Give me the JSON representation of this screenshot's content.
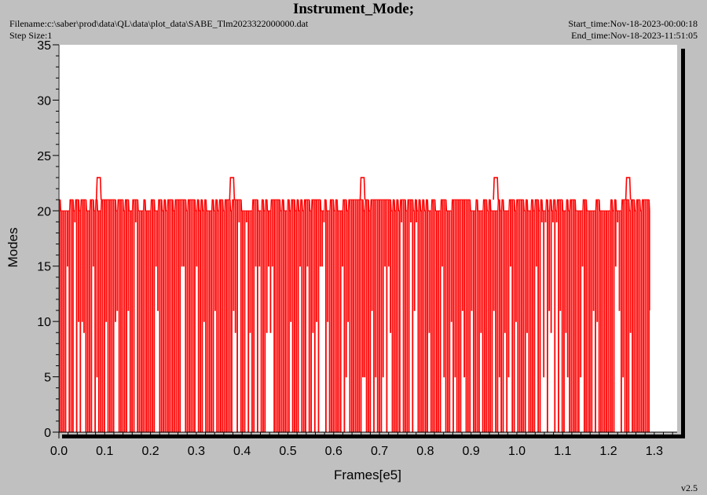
{
  "header": {
    "title": "Instrument_Mode;",
    "filename": "Filename:c:\\saber\\prod\\data\\QL\\data\\plot_data\\SABE_Tlm2023322000000.dat",
    "step_size": "Step Size:1",
    "start_time": "Start_time:Nov-18-2023-00:00:18",
    "end_time": "End_time:Nov-18-2023-11:51:05"
  },
  "version": "v2.5",
  "chart_data": {
    "type": "line",
    "xlabel": "Frames[e5]",
    "ylabel": "Modes",
    "xlim": [
      0.0,
      1.35
    ],
    "ylim": [
      0,
      35
    ],
    "xticks": [
      "0.0",
      "0.1",
      "0.2",
      "0.3",
      "0.4",
      "0.5",
      "0.6",
      "0.7",
      "0.8",
      "0.9",
      "1.0",
      "1.1",
      "1.2",
      "1.3"
    ],
    "yticks": [
      "0",
      "5",
      "10",
      "15",
      "20",
      "25",
      "30",
      "35"
    ],
    "grid": false,
    "color": "#ff0000",
    "series": [
      {
        "x_range": [
          0.0,
          1.29
        ],
        "baseline_level": 0,
        "upper_levels": [
          20,
          21
        ],
        "intermediate_levels": [
          5,
          9,
          10,
          11,
          15,
          19
        ],
        "spikes": [
          {
            "x": 0.087,
            "y": 23
          },
          {
            "x": 0.378,
            "y": 23
          },
          {
            "x": 0.663,
            "y": 23
          },
          {
            "x": 0.954,
            "y": 23
          },
          {
            "x": 1.243,
            "y": 23
          }
        ],
        "end_value": 11
      }
    ]
  }
}
